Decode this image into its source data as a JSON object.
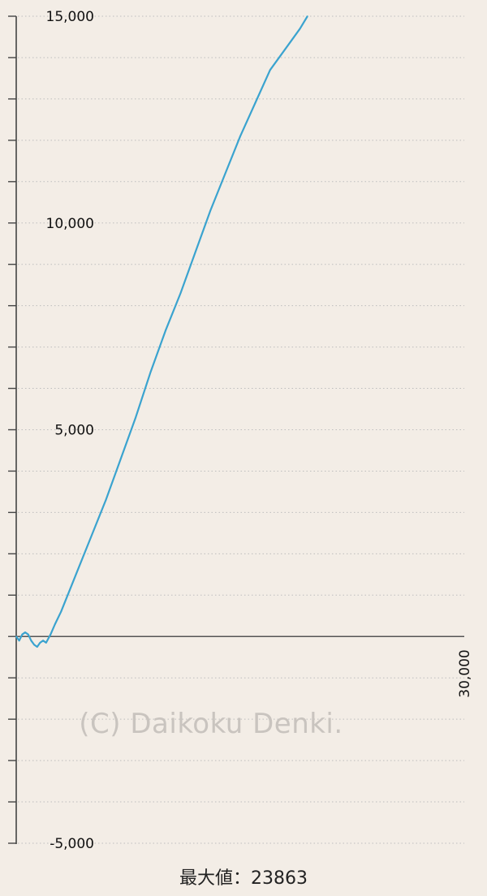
{
  "chart_data": {
    "type": "line",
    "title": "",
    "xlabel": "",
    "ylabel": "",
    "xlim": [
      0,
      30000
    ],
    "ylim": [
      -5000,
      15000
    ],
    "y_tick_labels": [
      "15,000",
      "10,000",
      "5,000",
      "-5,000"
    ],
    "x_tick_labels": [
      "30,000"
    ],
    "grid": true,
    "series": [
      {
        "color": "#3aa3cf",
        "x": [
          0,
          200,
          400,
          600,
          800,
          1000,
          1200,
          1400,
          1600,
          1800,
          2000,
          2300,
          2600,
          3000,
          4000,
          5000,
          6000,
          7000,
          8000,
          9000,
          10000,
          11000,
          12000,
          13000,
          14000,
          15000,
          16000,
          17000,
          18000,
          19000,
          19500
        ],
        "y": [
          0,
          -100,
          50,
          100,
          50,
          -100,
          -200,
          -250,
          -150,
          -100,
          -150,
          50,
          300,
          600,
          1500,
          2400,
          3300,
          4300,
          5300,
          6400,
          7400,
          8300,
          9300,
          10300,
          11200,
          12100,
          12900,
          13700,
          14200,
          14700,
          15000
        ]
      }
    ],
    "max_label": "最大値：23863",
    "watermark": "(C) Daikoku Denki."
  }
}
